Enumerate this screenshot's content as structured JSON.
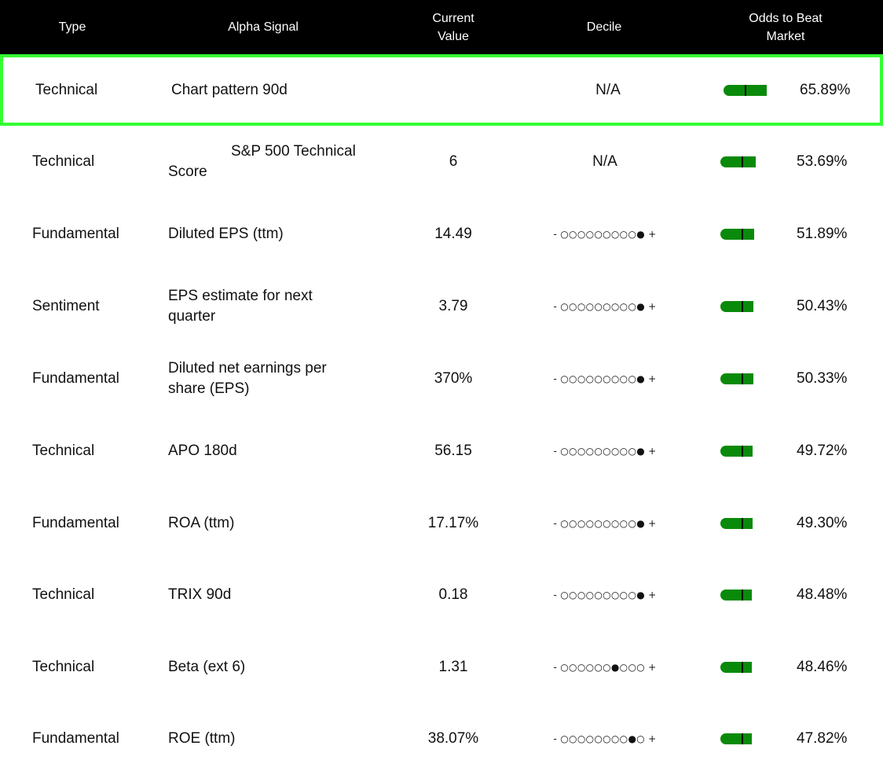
{
  "colors": {
    "header_bg": "#000000",
    "header_text": "#ffffff",
    "highlight_border": "#33ff33",
    "gauge_green": "#0a8a0a",
    "gauge_tick": "#000000"
  },
  "header": {
    "type": "Type",
    "signal": "Alpha Signal",
    "value_line1": "Current",
    "value_line2": "Value",
    "decile": "Decile",
    "odds_line1": "Odds to Beat",
    "odds_line2": "Market"
  },
  "rows": [
    {
      "type": "Technical",
      "signal": "Chart pattern 90d",
      "value": "",
      "decile": "N/A",
      "odds": "65.89%",
      "odds_fraction": 0.6589,
      "highlighted": true
    },
    {
      "type": "Technical",
      "signal_line1": "S&P 500 Technical",
      "signal_line2": "Score",
      "value": "6",
      "decile": "N/A",
      "odds": "53.69%",
      "odds_fraction": 0.5369,
      "highlighted": false
    },
    {
      "type": "Fundamental",
      "signal": "Diluted EPS (ttm)",
      "value": "14.49",
      "decile": "- ○○○○○○○○○● +",
      "odds": "51.89%",
      "odds_fraction": 0.5189,
      "highlighted": false
    },
    {
      "type": "Sentiment",
      "signal": "EPS estimate for next quarter",
      "value": "3.79",
      "decile": "- ○○○○○○○○○● +",
      "odds": "50.43%",
      "odds_fraction": 0.5043,
      "highlighted": false
    },
    {
      "type": "Fundamental",
      "signal": "Diluted net earnings per share (EPS)",
      "value": "370%",
      "decile": "- ○○○○○○○○○● +",
      "odds": "50.33%",
      "odds_fraction": 0.5033,
      "highlighted": false
    },
    {
      "type": "Technical",
      "signal": "APO 180d",
      "value": "56.15",
      "decile": "- ○○○○○○○○○● +",
      "odds": "49.72%",
      "odds_fraction": 0.4972,
      "highlighted": false
    },
    {
      "type": "Fundamental",
      "signal": "ROA (ttm)",
      "value": "17.17%",
      "decile": "- ○○○○○○○○○● +",
      "odds": "49.30%",
      "odds_fraction": 0.493,
      "highlighted": false
    },
    {
      "type": "Technical",
      "signal": "TRIX 90d",
      "value": "0.18",
      "decile": "- ○○○○○○○○○● +",
      "odds": "48.48%",
      "odds_fraction": 0.4848,
      "highlighted": false
    },
    {
      "type": "Technical",
      "signal": "Beta (ext 6)",
      "value": "1.31",
      "decile": "- ○○○○○○●○○○ +",
      "odds": "48.46%",
      "odds_fraction": 0.4846,
      "highlighted": false
    },
    {
      "type": "Fundamental",
      "signal": "ROE (ttm)",
      "value": "38.07%",
      "decile": "- ○○○○○○○○●○ +",
      "odds": "47.82%",
      "odds_fraction": 0.4782,
      "highlighted": false
    }
  ]
}
